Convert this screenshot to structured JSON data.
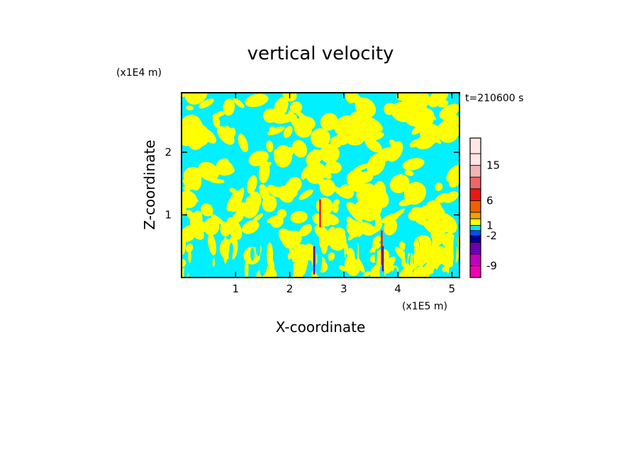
{
  "chart_data": {
    "type": "heatmap",
    "title": "vertical velocity",
    "time_label": "t=210600 s",
    "xlabel": "X-coordinate",
    "ylabel": "Z-coordinate",
    "x_unit": "(x1E5 m)",
    "y_unit": "(x1E4 m)",
    "xlim": [
      0,
      5.14
    ],
    "ylim": [
      0,
      2.95
    ],
    "x_ticks": [
      "1",
      "2",
      "3",
      "4",
      "5"
    ],
    "x_tick_values": [
      1,
      2,
      3,
      4,
      5
    ],
    "y_ticks": [
      "1",
      "2"
    ],
    "y_tick_values": [
      1,
      2
    ],
    "pattern": "alternating positive (yellow) and negative (cyan) vertical velocity cells over the domain; narrow strong updraft/downdraft columns near x=2.4, 2.55 and 3.7",
    "colorbar": {
      "levels": [
        {
          "color": "#ffe6e6",
          "label": ""
        },
        {
          "color": "#ffe6e6",
          "label": "15"
        },
        {
          "color": "#f4b4b4",
          "label": ""
        },
        {
          "color": "#ee6666",
          "label": ""
        },
        {
          "color": "#e81818",
          "label": "6"
        },
        {
          "color": "#f06000",
          "label": ""
        },
        {
          "color": "#f0a000",
          "label": ""
        },
        {
          "color": "#ffff00",
          "label": "1"
        },
        {
          "color": "#00e6f6",
          "label": ""
        },
        {
          "color": "#0050ff",
          "label": "-2"
        },
        {
          "color": "#0000a0",
          "label": ""
        },
        {
          "color": "#6a00b0",
          "label": ""
        },
        {
          "color": "#c000c0",
          "label": "-9"
        },
        {
          "color": "#f000b4",
          "label": ""
        }
      ]
    },
    "colors": {
      "positive": "#ffff00",
      "negative": "#00f0ff"
    }
  }
}
